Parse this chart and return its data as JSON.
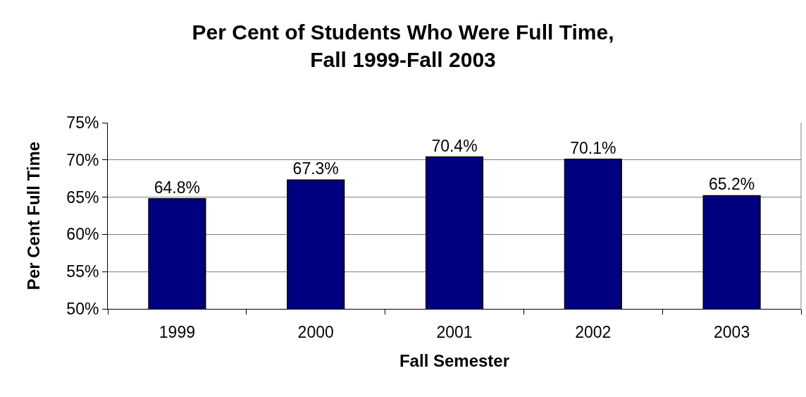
{
  "chart_data": {
    "type": "bar",
    "title": "Per Cent of Students Who Were Full Time,\nFall 1999-Fall 2003",
    "xlabel": "Fall Semester",
    "ylabel": "Per Cent Full Time",
    "categories": [
      "1999",
      "2000",
      "2001",
      "2002",
      "2003"
    ],
    "values": [
      64.8,
      67.3,
      70.4,
      70.1,
      65.2
    ],
    "value_labels": [
      "64.8%",
      "67.3%",
      "70.4%",
      "70.1%",
      "65.2%"
    ],
    "color": "#000080",
    "ylim": [
      50,
      75
    ],
    "yticks": [
      {
        "value": 50,
        "label": "50%"
      },
      {
        "value": 55,
        "label": "55%"
      },
      {
        "value": 60,
        "label": "60%"
      },
      {
        "value": 65,
        "label": "65%"
      },
      {
        "value": 70,
        "label": "70%"
      },
      {
        "value": 75,
        "label": "75%"
      }
    ],
    "grid": "y"
  }
}
